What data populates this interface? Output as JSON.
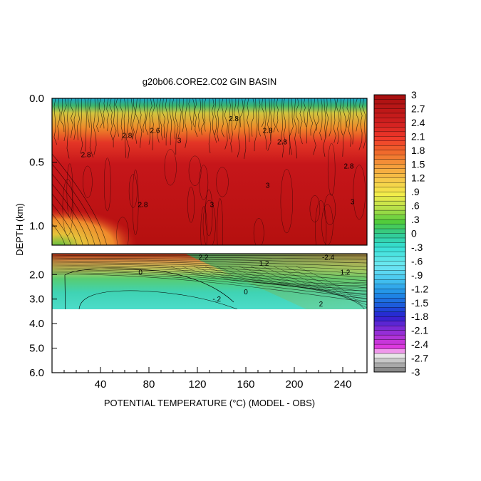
{
  "chart_data": {
    "type": "heatmap",
    "title": "g20b06.CORE2.C02 GIN BASIN",
    "xlabel": "POTENTIAL TEMPERATURE (°C) (MODEL - OBS)",
    "ylabel": "DEPTH (km)",
    "x_ticks": [
      "40",
      "80",
      "120",
      "160",
      "200",
      "240"
    ],
    "x_tick_values": [
      40,
      80,
      120,
      160,
      200,
      240
    ],
    "xlim": [
      0,
      260
    ],
    "panels": [
      {
        "name": "upper",
        "ylim": [
          0.0,
          1.15
        ],
        "y_ticks": [
          "0.0",
          "0.5",
          "1.0"
        ],
        "y_tick_values": [
          0.0,
          0.5,
          1.0
        ]
      },
      {
        "name": "lower",
        "ylim": [
          1.15,
          6.0
        ],
        "y_ticks": [
          "2.0",
          "3.0",
          "4.0",
          "5.0",
          "6.0"
        ],
        "y_tick_values": [
          2.0,
          3.0,
          4.0,
          5.0,
          6.0
        ],
        "data_bottom_depth": 3.4
      }
    ],
    "colorbar": {
      "min": -3,
      "max": 3,
      "labels": [
        "3",
        "2.7",
        "2.4",
        "2.1",
        "1.8",
        "1.5",
        "1.2",
        ".9",
        ".6",
        ".3",
        "0",
        "-.3",
        "-.6",
        "-.9",
        "-1.2",
        "-1.5",
        "-1.8",
        "-2.1",
        "-2.4",
        "-2.7",
        "-3"
      ],
      "label_values": [
        3,
        2.7,
        2.4,
        2.1,
        1.8,
        1.5,
        1.2,
        0.9,
        0.6,
        0.3,
        0,
        -0.3,
        -0.6,
        -0.9,
        -1.2,
        -1.5,
        -1.8,
        -2.1,
        -2.4,
        -2.7,
        -3
      ]
    },
    "contour_labels": [
      {
        "text": "2.8",
        "x": 28,
        "depth": 0.46
      },
      {
        "text": "2.8",
        "x": 62,
        "depth": 0.31
      },
      {
        "text": "2.6",
        "x": 85,
        "depth": 0.27
      },
      {
        "text": "3",
        "x": 105,
        "depth": 0.35
      },
      {
        "text": "2.8",
        "x": 150,
        "depth": 0.18
      },
      {
        "text": "3",
        "x": 178,
        "depth": 0.7
      },
      {
        "text": "2.8",
        "x": 190,
        "depth": 0.36
      },
      {
        "text": "2.8",
        "x": 245,
        "depth": 0.55
      },
      {
        "text": "3",
        "x": 248,
        "depth": 0.83
      },
      {
        "text": "2.8",
        "x": 75,
        "depth": 0.85
      },
      {
        "text": "2.8",
        "x": 178,
        "depth": 0.27
      },
      {
        "text": "3",
        "x": 132,
        "depth": 0.85
      },
      {
        "text": "0",
        "x": 73,
        "depth": 2.0
      },
      {
        "text": "0",
        "x": 160,
        "depth": 2.8
      },
      {
        "text": "-.2",
        "x": 136,
        "depth": 3.1
      },
      {
        "text": "1.2",
        "x": 175,
        "depth": 1.65
      },
      {
        "text": "1.2",
        "x": 242,
        "depth": 2.0
      },
      {
        "text": "2",
        "x": 222,
        "depth": 3.3
      },
      {
        "text": "-2.4",
        "x": 228,
        "depth": 1.4
      },
      {
        "text": "2.2",
        "x": 125,
        "depth": 1.4
      }
    ]
  }
}
